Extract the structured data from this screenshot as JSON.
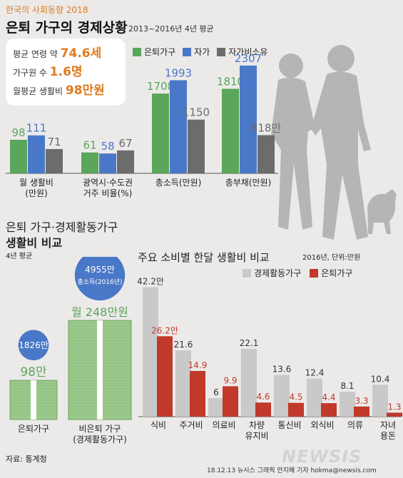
{
  "header": {
    "series_title": "한국의 사회동향 2018",
    "title": "은퇴 가구의 경제상황",
    "period": "2013~2016년 4년 평균"
  },
  "info_box": {
    "age_label": "평균 연령 약 ",
    "age_value": "74.6세",
    "members_label": "가구원 수 ",
    "members_value": "1.6명",
    "cost_label": "월평균 생활비 ",
    "cost_value": "98만원"
  },
  "colors": {
    "green": "#5aa65b",
    "blue": "#4a78c8",
    "gray": "#6c6c6c",
    "light_gray": "#c9c9c9",
    "red": "#c0392b",
    "orange": "#e07a1f",
    "bill_green": "#9bc98b",
    "silhouette": "#b7b5b3"
  },
  "chart_data": [
    {
      "type": "bar",
      "legend": [
        "은퇴가구",
        "자가",
        "자가비소유"
      ],
      "legend_position": "top",
      "groups": [
        {
          "label_lines": [
            "월 생활비",
            "(만원)"
          ],
          "values": [
            98,
            111,
            71
          ],
          "labels": [
            "98",
            "111",
            "71"
          ]
        },
        {
          "label_lines": [
            "광역시·수도권",
            "거주 비율(%)"
          ],
          "values": [
            61,
            58,
            67
          ],
          "labels": [
            "61",
            "58",
            "67"
          ]
        },
        {
          "label_lines": [
            "총소득(만원)"
          ],
          "values": [
            1708,
            1993,
            1150
          ],
          "labels": [
            "1708",
            "1993",
            "1150"
          ]
        },
        {
          "label_lines": [
            "총부채(만원)"
          ],
          "values": [
            1810,
            2307,
            818
          ],
          "labels": [
            "1810",
            "2307",
            "818만"
          ]
        }
      ]
    },
    {
      "type": "bar",
      "title_line1": "은퇴 가구·경제활동가구",
      "title_line2": "생활비 비교",
      "note": "4년 평균",
      "categories": [
        "은퇴가구",
        "비은퇴 가구\n(경제활동가구)"
      ],
      "monthly_cost": [
        98,
        248
      ],
      "monthly_cost_labels": [
        "98만",
        "월 248만원"
      ],
      "total_income": [
        1826,
        4955
      ],
      "total_income_labels": [
        "1826만",
        "4955만"
      ],
      "total_income_sub": "총소득(2016년)"
    },
    {
      "type": "bar",
      "title": "주요 소비별 한달 생활비 비교",
      "note": "2016년, 단위:만원",
      "legend": [
        "경제활동가구",
        "은퇴가구"
      ],
      "legend_position": "top-right",
      "categories": [
        "식비",
        "주거비",
        "의료비",
        "차량 유지비",
        "통신비",
        "외식비",
        "의류",
        "자녀 용돈"
      ],
      "category_lines": [
        [
          "식비"
        ],
        [
          "주거비"
        ],
        [
          "의료비"
        ],
        [
          "차량",
          "유지비"
        ],
        [
          "통신비"
        ],
        [
          "외식비"
        ],
        [
          "의류"
        ],
        [
          "자녀",
          "용돈"
        ]
      ],
      "series": [
        {
          "name": "경제활동가구",
          "values": [
            42.2,
            21.6,
            6,
            22.1,
            13.6,
            12.4,
            8.1,
            10.4
          ],
          "labels": [
            "42.2만",
            "21.6",
            "6",
            "22.1",
            "13.6",
            "12.4",
            "8.1",
            "10.4"
          ]
        },
        {
          "name": "은퇴가구",
          "values": [
            26.2,
            14.9,
            9.9,
            4.6,
            4.5,
            4.4,
            3.3,
            1.3
          ],
          "labels": [
            "26.2만",
            "14.9",
            "9.9",
            "4.6",
            "4.5",
            "4.4",
            "3.3",
            "1.3"
          ]
        }
      ]
    }
  ],
  "footer": {
    "source": "자료: 통계청",
    "credit": "18.12.13 뉴시스 그래픽 안지혜 기자 hokma@newsis.com",
    "logo": "NEWSIS"
  }
}
